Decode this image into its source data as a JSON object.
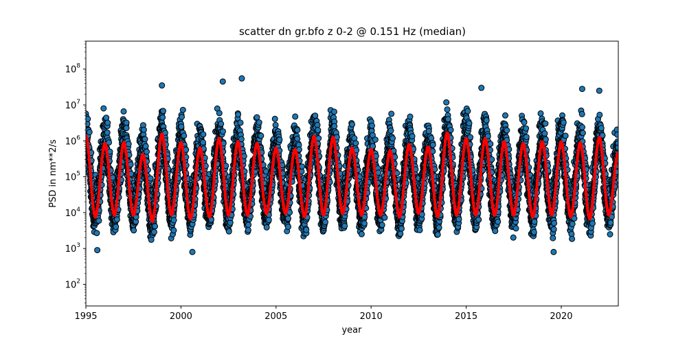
{
  "chart_data": {
    "type": "scatter",
    "title": "scatter dn gr.bfo z 0-2 @ 0.151 Hz (median)",
    "xlabel": "year",
    "ylabel": "PSD in nm**2/s",
    "xlim": [
      1995,
      2023
    ],
    "ylim": [
      25,
      600000000
    ],
    "yscale": "log",
    "grid": false,
    "x_ticks": [
      1995,
      2000,
      2005,
      2010,
      2015,
      2020
    ],
    "x_tick_labels": [
      "1995",
      "2000",
      "2005",
      "2010",
      "2015",
      "2020"
    ],
    "y_ticks": [
      100,
      1000,
      10000,
      100000,
      1000000,
      10000000,
      100000000
    ],
    "y_tick_labels": [
      {
        "base": "10",
        "exp": "2"
      },
      {
        "base": "10",
        "exp": "3"
      },
      {
        "base": "10",
        "exp": "4"
      },
      {
        "base": "10",
        "exp": "5"
      },
      {
        "base": "10",
        "exp": "6"
      },
      {
        "base": "10",
        "exp": "7"
      },
      {
        "base": "10",
        "exp": "8"
      }
    ],
    "scatter_style": {
      "fill": "#1f77b4",
      "edge": "#000000"
    },
    "median_line": {
      "color": "#ff0000",
      "description": "seasonal median, peaks in winter, troughs in summer",
      "peaks": [
        {
          "x": 1996.0,
          "y": 800000
        },
        {
          "x": 1997.0,
          "y": 850000
        },
        {
          "x": 1998.0,
          "y": 400000
        },
        {
          "x": 1999.0,
          "y": 1500000
        },
        {
          "x": 2000.0,
          "y": 850000
        },
        {
          "x": 2001.0,
          "y": 600000
        },
        {
          "x": 2002.0,
          "y": 1100000
        },
        {
          "x": 2003.0,
          "y": 900000
        },
        {
          "x": 2004.0,
          "y": 800000
        },
        {
          "x": 2005.0,
          "y": 600000
        },
        {
          "x": 2006.0,
          "y": 550000
        },
        {
          "x": 2007.0,
          "y": 1300000
        },
        {
          "x": 2008.0,
          "y": 1200000
        },
        {
          "x": 2009.0,
          "y": 600000
        },
        {
          "x": 2010.0,
          "y": 550000
        },
        {
          "x": 2011.0,
          "y": 500000
        },
        {
          "x": 2012.0,
          "y": 750000
        },
        {
          "x": 2013.0,
          "y": 650000
        },
        {
          "x": 2014.0,
          "y": 1600000
        },
        {
          "x": 2015.0,
          "y": 1100000
        },
        {
          "x": 2016.0,
          "y": 1100000
        },
        {
          "x": 2017.0,
          "y": 900000
        },
        {
          "x": 2018.0,
          "y": 800000
        },
        {
          "x": 2019.0,
          "y": 900000
        },
        {
          "x": 2020.0,
          "y": 900000
        },
        {
          "x": 2021.0,
          "y": 850000
        },
        {
          "x": 2022.0,
          "y": 1200000
        }
      ],
      "troughs": [
        {
          "x": 1995.5,
          "y": 8000
        },
        {
          "x": 1996.5,
          "y": 9000
        },
        {
          "x": 1997.5,
          "y": 9000
        },
        {
          "x": 1998.5,
          "y": 6000
        },
        {
          "x": 1999.5,
          "y": 9000
        },
        {
          "x": 2000.5,
          "y": 7000
        },
        {
          "x": 2001.5,
          "y": 8000
        },
        {
          "x": 2002.5,
          "y": 9000
        },
        {
          "x": 2003.5,
          "y": 9000
        },
        {
          "x": 2004.5,
          "y": 10000
        },
        {
          "x": 2005.5,
          "y": 10000
        },
        {
          "x": 2006.5,
          "y": 8000
        },
        {
          "x": 2007.5,
          "y": 9000
        },
        {
          "x": 2008.5,
          "y": 10000
        },
        {
          "x": 2009.5,
          "y": 9000
        },
        {
          "x": 2010.5,
          "y": 9000
        },
        {
          "x": 2011.5,
          "y": 8000
        },
        {
          "x": 2012.5,
          "y": 10000
        },
        {
          "x": 2013.5,
          "y": 8000
        },
        {
          "x": 2014.5,
          "y": 9000
        },
        {
          "x": 2015.5,
          "y": 9000
        },
        {
          "x": 2016.5,
          "y": 9000
        },
        {
          "x": 2017.5,
          "y": 9000
        },
        {
          "x": 2018.5,
          "y": 8000
        },
        {
          "x": 2019.5,
          "y": 9000
        },
        {
          "x": 2020.5,
          "y": 8000
        },
        {
          "x": 2021.5,
          "y": 7000
        },
        {
          "x": 2022.5,
          "y": 9000
        }
      ],
      "end_value": {
        "x": 2023.0,
        "y": 450000
      },
      "start_value": {
        "x": 1995.0,
        "y": 1300000
      }
    },
    "scatter_envelope": {
      "description": "point cloud spread per season around median",
      "upper_factor": 12,
      "lower_factor": 0.2,
      "notable_high_points": [
        {
          "x": 2002.2,
          "y": 45000000
        },
        {
          "x": 2003.2,
          "y": 55000000
        },
        {
          "x": 1999.0,
          "y": 35000000
        },
        {
          "x": 2015.8,
          "y": 30000000
        },
        {
          "x": 2021.1,
          "y": 28000000
        },
        {
          "x": 2022.0,
          "y": 25000000
        }
      ],
      "notable_low_points": [
        {
          "x": 1995.6,
          "y": 900
        },
        {
          "x": 2000.6,
          "y": 800
        },
        {
          "x": 2019.6,
          "y": 800
        }
      ]
    }
  }
}
